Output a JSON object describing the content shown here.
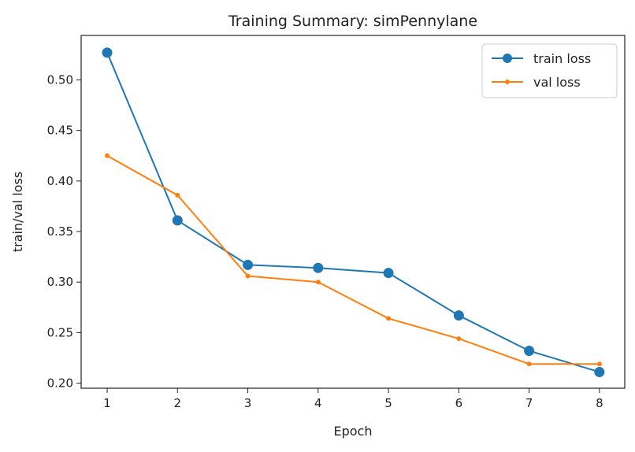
{
  "chart_data": {
    "type": "line",
    "title": "Training Summary: simPennylane",
    "xlabel": "Epoch",
    "ylabel": "train/val loss",
    "x": [
      1,
      2,
      3,
      4,
      5,
      6,
      7,
      8
    ],
    "xlim": [
      0.63,
      8.36
    ],
    "ylim": [
      0.195,
      0.544
    ],
    "xticks": [
      1,
      2,
      3,
      4,
      5,
      6,
      7,
      8
    ],
    "yticks": [
      0.2,
      0.25,
      0.3,
      0.35,
      0.4,
      0.45,
      0.5
    ],
    "ytick_labels": [
      "0.20",
      "0.25",
      "0.30",
      "0.35",
      "0.40",
      "0.45",
      "0.50"
    ],
    "grid": false,
    "legend": "top-right",
    "series": [
      {
        "name": "train loss",
        "color": "#1f77b4",
        "marker": "circle-large",
        "values": [
          0.527,
          0.361,
          0.317,
          0.314,
          0.309,
          0.267,
          0.232,
          0.211
        ]
      },
      {
        "name": "val loss",
        "color": "#ff7f0e",
        "marker": "circle-small",
        "values": [
          0.425,
          0.386,
          0.306,
          0.3,
          0.264,
          0.244,
          0.219,
          0.219
        ]
      }
    ]
  }
}
